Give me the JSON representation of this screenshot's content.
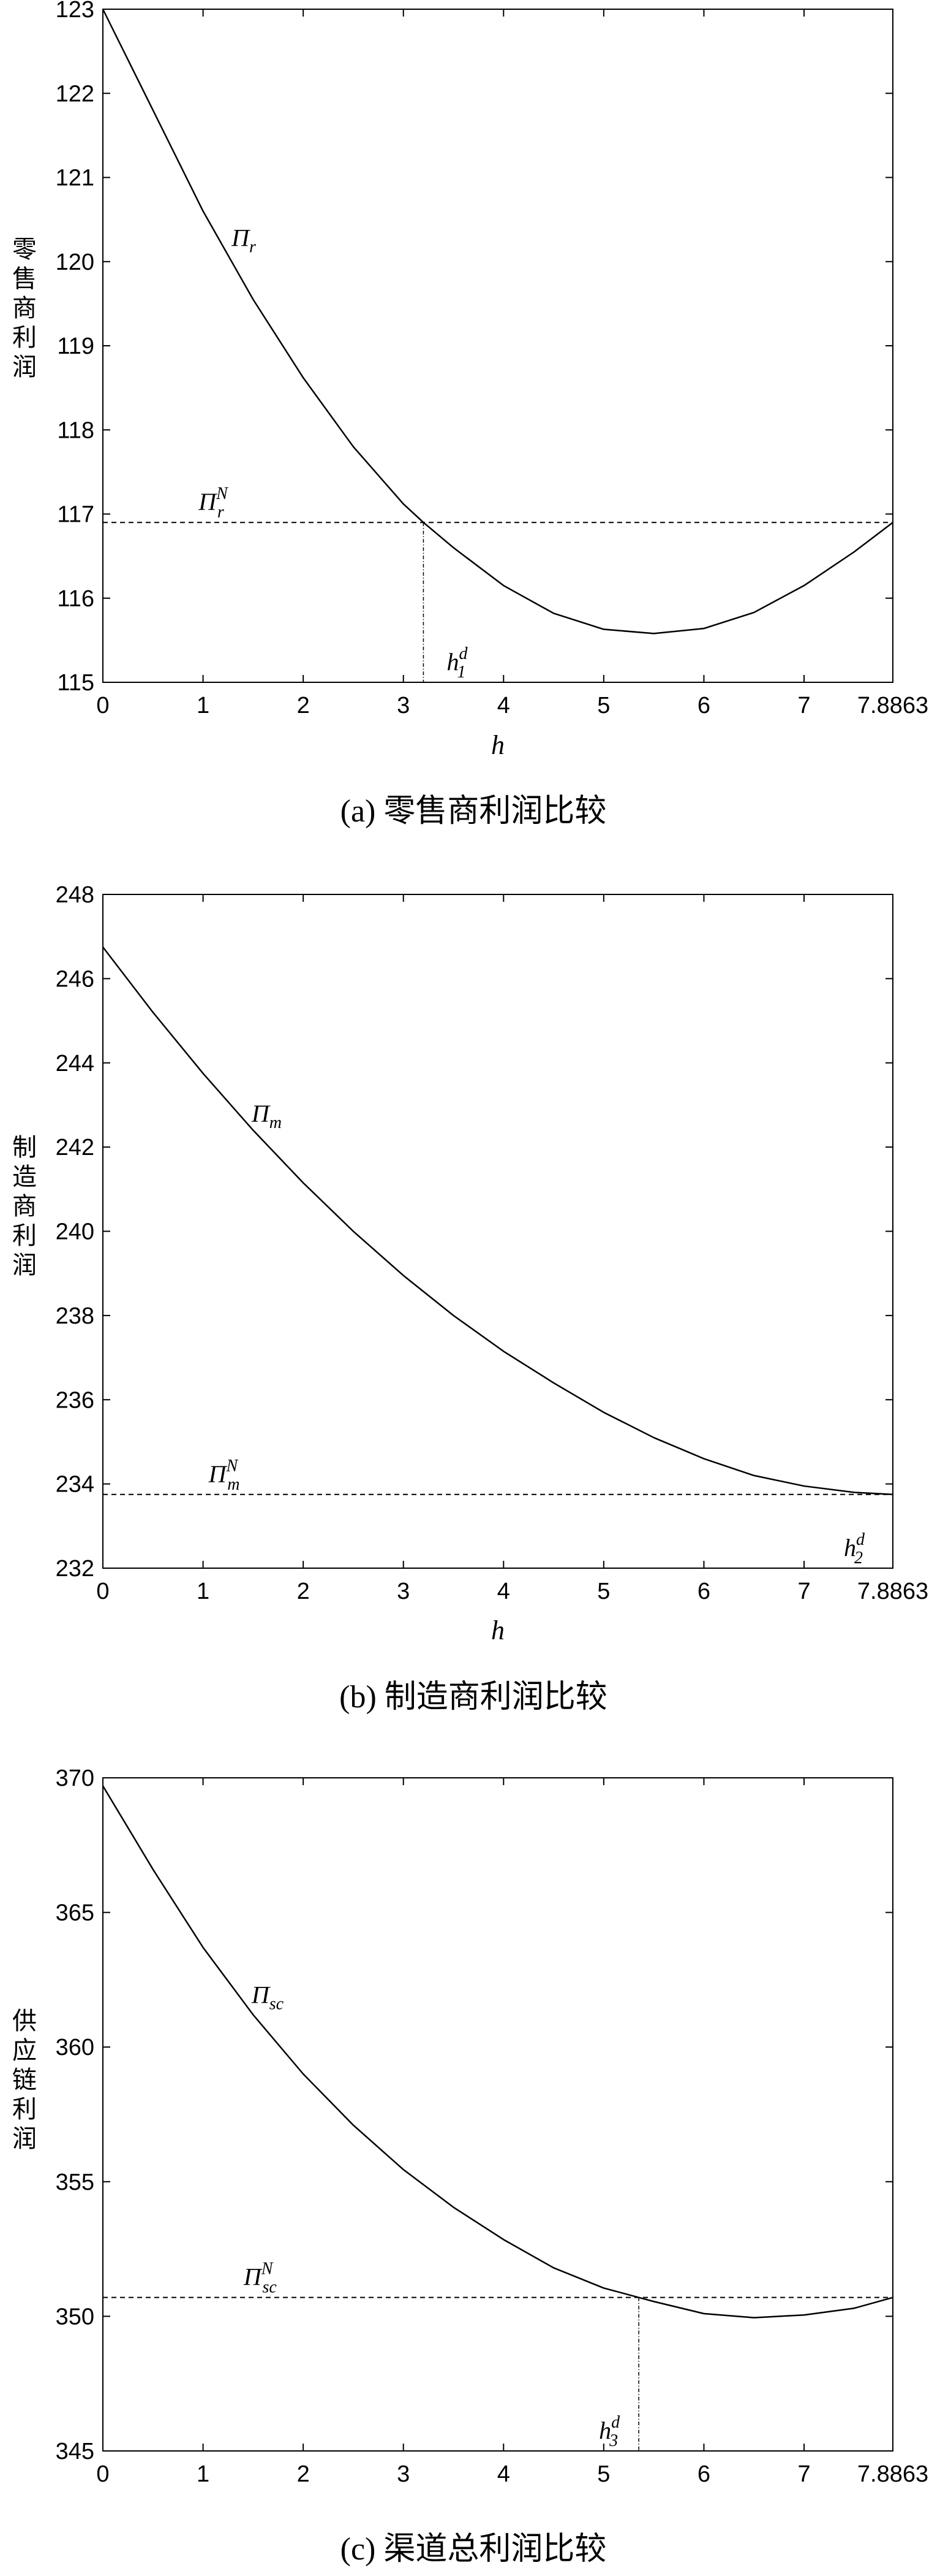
{
  "chart_data": [
    {
      "type": "line",
      "caption": "(a) 零售商利润比较",
      "xlabel": "h",
      "ylabel_chars": [
        "零",
        "售",
        "商",
        "利",
        "润"
      ],
      "xlim": [
        0,
        7.8863
      ],
      "ylim": [
        115,
        123
      ],
      "x_ticks": [
        0,
        1,
        2,
        3,
        4,
        5,
        6,
        7,
        7.8863
      ],
      "x_tick_labels": [
        "0",
        "1",
        "2",
        "3",
        "4",
        "5",
        "6",
        "7",
        "7.8863"
      ],
      "y_ticks": [
        115,
        116,
        117,
        118,
        119,
        120,
        121,
        122,
        123
      ],
      "y_tick_labels": [
        "115",
        "116",
        "117",
        "118",
        "119",
        "120",
        "121",
        "122",
        "123"
      ],
      "curve": {
        "label": {
          "base": "Π",
          "sub": "r"
        },
        "x": [
          0,
          0.5,
          1,
          1.5,
          2,
          2.5,
          3,
          3.2,
          3.5,
          4,
          4.5,
          5,
          5.5,
          6,
          6.5,
          7,
          7.5,
          7.8863
        ],
        "y": [
          123,
          121.8,
          120.6,
          119.55,
          118.62,
          117.8,
          117.12,
          116.9,
          116.6,
          116.15,
          115.82,
          115.63,
          115.58,
          115.64,
          115.83,
          116.15,
          116.55,
          116.9
        ]
      },
      "reference_line": {
        "y": 116.9,
        "label": {
          "base": "Π",
          "sub": "r",
          "sup": "N"
        }
      },
      "marker": {
        "x": 3.2,
        "label": {
          "base": "h",
          "sub": "1",
          "sup": "d"
        }
      }
    },
    {
      "type": "line",
      "caption": "(b) 制造商利润比较",
      "xlabel": "h",
      "ylabel_chars": [
        "制",
        "造",
        "商",
        "利",
        "润"
      ],
      "xlim": [
        0,
        7.8863
      ],
      "ylim": [
        232,
        248
      ],
      "x_ticks": [
        0,
        1,
        2,
        3,
        4,
        5,
        6,
        7,
        7.8863
      ],
      "x_tick_labels": [
        "0",
        "1",
        "2",
        "3",
        "4",
        "5",
        "6",
        "7",
        "7.8863"
      ],
      "y_ticks": [
        232,
        234,
        236,
        238,
        240,
        242,
        244,
        246,
        248
      ],
      "y_tick_labels": [
        "232",
        "234",
        "236",
        "238",
        "240",
        "242",
        "244",
        "246",
        "248"
      ],
      "curve": {
        "label": {
          "base": "Π",
          "sub": "m"
        },
        "x": [
          0,
          0.5,
          1,
          1.5,
          2,
          2.5,
          3,
          3.5,
          4,
          4.5,
          5,
          5.5,
          6,
          6.5,
          7,
          7.5,
          7.8863
        ],
        "y": [
          246.75,
          245.2,
          243.75,
          242.4,
          241.15,
          240.0,
          238.95,
          238.0,
          237.15,
          236.4,
          235.7,
          235.1,
          234.6,
          234.2,
          233.95,
          233.8,
          233.75
        ]
      },
      "reference_line": {
        "y": 233.75,
        "label": {
          "base": "Π",
          "sub": "m",
          "sup": "N"
        }
      },
      "marker": {
        "x": 7.8863,
        "label": {
          "base": "h",
          "sub": "2",
          "sup": "d"
        }
      }
    },
    {
      "type": "line",
      "caption": "(c) 渠道总利润比较",
      "xlabel": "",
      "ylabel_chars": [
        "供",
        "应",
        "链",
        "利",
        "润"
      ],
      "xlim": [
        0,
        7.8863
      ],
      "ylim": [
        345,
        370
      ],
      "x_ticks": [
        0,
        1,
        2,
        3,
        4,
        5,
        6,
        7,
        7.8863
      ],
      "x_tick_labels": [
        "0",
        "1",
        "2",
        "3",
        "4",
        "5",
        "6",
        "7",
        "7.8863"
      ],
      "y_ticks": [
        345,
        350,
        355,
        360,
        365,
        370
      ],
      "y_tick_labels": [
        "345",
        "350",
        "355",
        "360",
        "365",
        "370"
      ],
      "curve": {
        "label": {
          "base": "Π",
          "sub": "sc"
        },
        "x": [
          0,
          0.5,
          1,
          1.5,
          2,
          2.5,
          3,
          3.5,
          4,
          4.5,
          5,
          5.35,
          5.5,
          6,
          6.5,
          7,
          7.5,
          7.8863
        ],
        "y": [
          369.7,
          366.6,
          363.7,
          361.2,
          359.0,
          357.1,
          355.45,
          354.05,
          352.85,
          351.8,
          351.05,
          350.7,
          350.55,
          350.1,
          349.95,
          350.05,
          350.3,
          350.7
        ]
      },
      "reference_line": {
        "y": 350.7,
        "label": {
          "base": "Π",
          "sub": "sc",
          "sup": "N"
        }
      },
      "marker": {
        "x": 5.35,
        "label": {
          "base": "h",
          "sub": "3",
          "sup": "d"
        }
      }
    }
  ]
}
